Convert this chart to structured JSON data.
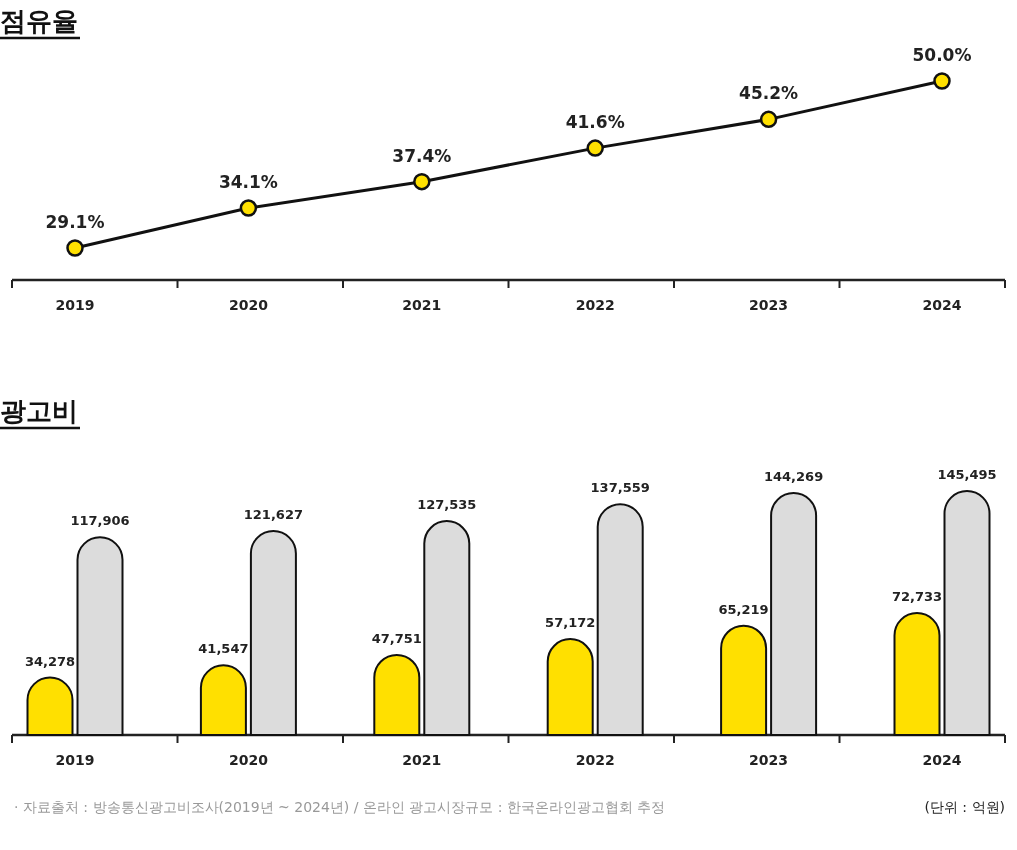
{
  "chart_data": [
    {
      "type": "line",
      "title": "점유율",
      "categories": [
        "2019",
        "2020",
        "2021",
        "2022",
        "2023",
        "2024"
      ],
      "marker": "circle",
      "series": [
        {
          "color": "#ffe000",
          "values": [
            29.1,
            34.1,
            37.4,
            41.6,
            45.2,
            50.0
          ],
          "value_labels": [
            "29.1%",
            "34.1%",
            "37.4%",
            "41.6%",
            "45.2%",
            "50.0%"
          ]
        }
      ]
    },
    {
      "type": "bar",
      "title": "광고비",
      "categories": [
        "2019",
        "2020",
        "2021",
        "2022",
        "2023",
        "2024"
      ],
      "series": [
        {
          "color": "#ffe000",
          "values": [
            34278,
            41547,
            47751,
            57172,
            65219,
            72733
          ],
          "value_labels": [
            "34,278",
            "41,547",
            "47,751",
            "57,172",
            "65,219",
            "72,733"
          ]
        },
        {
          "color": "#dcdcdc",
          "values": [
            117906,
            121627,
            127535,
            137559,
            144269,
            145495
          ],
          "value_labels": [
            "117,906",
            "121,627",
            "127,535",
            "137,559",
            "144,269",
            "145,495"
          ]
        }
      ],
      "annotations": [
        "· 자료출처 : 방송통신광고비조사(2019년 ~ 2024년) / 온라인 광고시장규모 : 한국온라인광고협회 추정",
        "(단위 : 억원)"
      ]
    }
  ]
}
